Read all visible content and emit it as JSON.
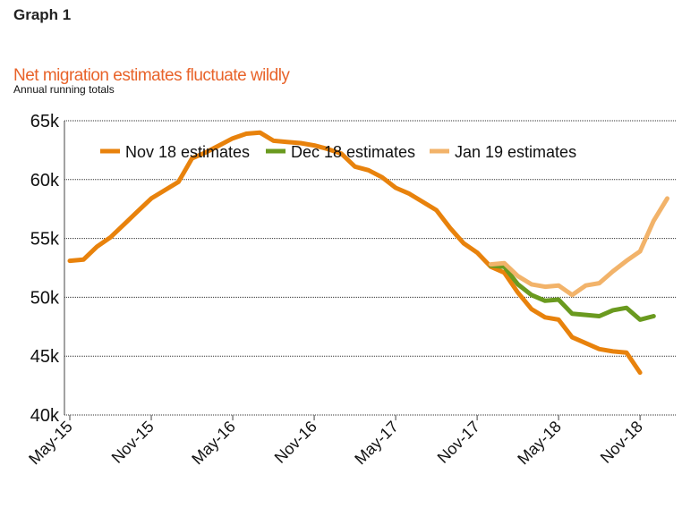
{
  "header": "Graph 1",
  "chart_data": {
    "type": "line",
    "title": "Net migration estimates fluctuate wildly",
    "subtitle": "Annual running totals",
    "xlabel": "",
    "ylabel": "",
    "x_ticks": [
      "May-15",
      "Nov-15",
      "May-16",
      "Nov-16",
      "May-17",
      "Nov-17",
      "May-18",
      "Nov-18"
    ],
    "x_start": "May-15",
    "x_step": "1 month",
    "y_ticks": [
      "40k",
      "45k",
      "50k",
      "55k",
      "60k",
      "65k"
    ],
    "ylim": [
      40,
      65
    ],
    "y_unit": "thousands",
    "grid": "horizontal dotted",
    "legend": "top",
    "series": [
      {
        "name": "Nov 18 estimates",
        "color": "#E8820C",
        "start_index": 0,
        "values": [
          53.1,
          53.2,
          54.3,
          55.1,
          56.2,
          57.3,
          58.4,
          59.1,
          59.8,
          61.8,
          62.3,
          62.9,
          63.5,
          63.9,
          64.0,
          63.3,
          63.2,
          63.1,
          62.9,
          62.6,
          62.2,
          61.1,
          60.8,
          60.2,
          59.3,
          58.8,
          58.1,
          57.4,
          55.9,
          54.6,
          53.8,
          52.6,
          52.1,
          50.4,
          49.0,
          48.3,
          48.1,
          46.6,
          46.1,
          45.6,
          45.4,
          45.3,
          43.6
        ]
      },
      {
        "name": "Dec 18 estimates",
        "color": "#6A9A1F",
        "start_index": 31,
        "values": [
          52.7,
          52.6,
          51.1,
          50.2,
          49.7,
          49.8,
          48.6,
          48.5,
          48.4,
          48.9,
          49.1,
          48.1,
          48.4
        ]
      },
      {
        "name": "Jan 19 estimates",
        "color": "#F2B36A",
        "start_index": 31,
        "values": [
          52.8,
          52.9,
          51.8,
          51.1,
          50.9,
          51.0,
          50.2,
          51.0,
          51.2,
          52.2,
          53.1,
          53.9,
          56.5,
          58.4
        ]
      }
    ]
  }
}
